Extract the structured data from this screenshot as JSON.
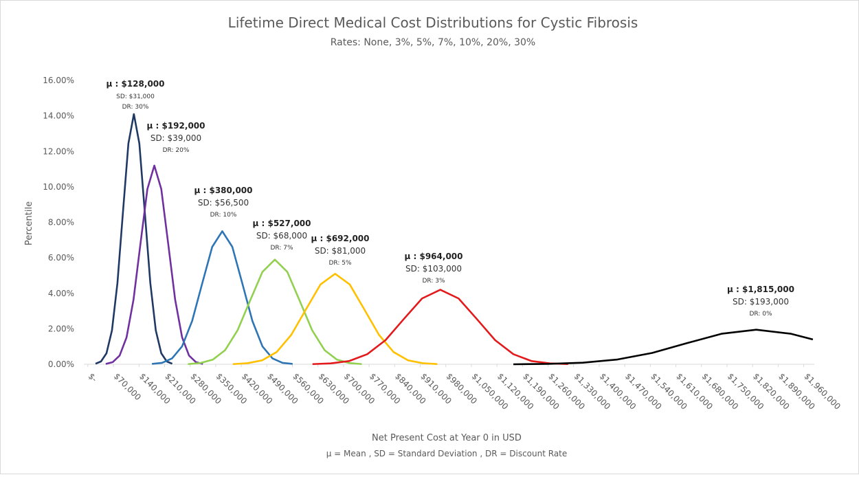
{
  "chart_data": {
    "type": "line",
    "title": "Lifetime Direct Medical Cost Distributions for Cystic Fibrosis",
    "subtitle": "Rates: None, 3%, 5%, 7%, 10%, 20%, 30%",
    "y_label": "Percentile",
    "x_label": "Net Present Cost at Year 0 in USD",
    "note": "μ = Mean , SD = Standard Deviation , DR = Discount Rate",
    "xlim": [
      -11000,
      1989000
    ],
    "ylim": [
      0,
      16
    ],
    "xticks": [
      {
        "value": 0,
        "label": "$-"
      },
      {
        "value": 70000,
        "label": "$70,000"
      },
      {
        "value": 140000,
        "label": "$140,000"
      },
      {
        "value": 210000,
        "label": "$210,000"
      },
      {
        "value": 280000,
        "label": "$280,000"
      },
      {
        "value": 350000,
        "label": "$350,000"
      },
      {
        "value": 420000,
        "label": "$420,000"
      },
      {
        "value": 490000,
        "label": "$490,000"
      },
      {
        "value": 560000,
        "label": "$560,000"
      },
      {
        "value": 630000,
        "label": "$630,000"
      },
      {
        "value": 700000,
        "label": "$700,000"
      },
      {
        "value": 770000,
        "label": "$770,000"
      },
      {
        "value": 840000,
        "label": "$840,000"
      },
      {
        "value": 910000,
        "label": "$910,000"
      },
      {
        "value": 980000,
        "label": "$980,000"
      },
      {
        "value": 1050000,
        "label": "$1,050,000"
      },
      {
        "value": 1120000,
        "label": "$1,120,000"
      },
      {
        "value": 1190000,
        "label": "$1,190,000"
      },
      {
        "value": 1260000,
        "label": "$1,260,000"
      },
      {
        "value": 1330000,
        "label": "$1,330,000"
      },
      {
        "value": 1400000,
        "label": "$1,400,000"
      },
      {
        "value": 1470000,
        "label": "$1,470,000"
      },
      {
        "value": 1540000,
        "label": "$1,540,000"
      },
      {
        "value": 1610000,
        "label": "$1,610,000"
      },
      {
        "value": 1680000,
        "label": "$1,680,000"
      },
      {
        "value": 1750000,
        "label": "$1,750,000"
      },
      {
        "value": 1820000,
        "label": "$1,820,000"
      },
      {
        "value": 1890000,
        "label": "$1,890,000"
      },
      {
        "value": 1960000,
        "label": "$1,960,000"
      }
    ],
    "yticks": [
      {
        "value": 0,
        "label": "0.00%"
      },
      {
        "value": 2,
        "label": "2.00%"
      },
      {
        "value": 4,
        "label": "4.00%"
      },
      {
        "value": 6,
        "label": "6.00%"
      },
      {
        "value": 8,
        "label": "8.00%"
      },
      {
        "value": 10,
        "label": "10.00%"
      },
      {
        "value": 12,
        "label": "12.00%"
      },
      {
        "value": 14,
        "label": "14.00%"
      },
      {
        "value": 16,
        "label": "16.00%"
      }
    ],
    "series": [
      {
        "color": "#1f3864",
        "x": [
          21000,
          36000,
          51000,
          66000,
          81000,
          96000,
          111000,
          126000,
          141000,
          156000,
          171000,
          186000,
          201000,
          216000,
          231000
        ],
        "values": [
          0.03,
          0.16,
          0.62,
          1.91,
          4.58,
          8.55,
          12.44,
          14.1,
          12.44,
          8.55,
          4.58,
          1.91,
          0.62,
          0.16,
          0.03
        ]
      },
      {
        "color": "#7030a0",
        "x": [
          49000,
          68000,
          87000,
          106000,
          125000,
          144000,
          163000,
          182000,
          201000,
          220000,
          239000,
          258000,
          277000,
          296000,
          315000
        ],
        "values": [
          0.02,
          0.12,
          0.49,
          1.52,
          3.64,
          6.79,
          9.88,
          11.2,
          9.88,
          6.79,
          3.64,
          1.52,
          0.49,
          0.12,
          0.02
        ]
      },
      {
        "color": "#2e75b6",
        "x": [
          175500,
          203000,
          230500,
          258000,
          285500,
          313000,
          340500,
          368000,
          395500,
          423000,
          450500,
          478000,
          505500,
          533000,
          560500
        ],
        "values": [
          0.02,
          0.08,
          0.33,
          1.01,
          2.44,
          4.55,
          6.62,
          7.5,
          6.62,
          4.55,
          2.44,
          1.01,
          0.33,
          0.08,
          0.02
        ]
      },
      {
        "color": "#92d050",
        "x": [
          274000,
          308000,
          342000,
          376000,
          410000,
          444000,
          478000,
          512000,
          546000,
          580000,
          614000,
          648000,
          682000,
          716000,
          750000
        ],
        "values": [
          0.01,
          0.07,
          0.26,
          0.8,
          1.92,
          3.58,
          5.21,
          5.9,
          5.21,
          3.58,
          1.92,
          0.8,
          0.26,
          0.07,
          0.01
        ]
      },
      {
        "color": "#ffc000",
        "x": [
          397000,
          437000,
          477000,
          517000,
          557000,
          597000,
          637000,
          677000,
          717000,
          757000,
          797000,
          837000,
          877000,
          917000,
          957000
        ],
        "values": [
          0.01,
          0.06,
          0.22,
          0.69,
          1.66,
          3.09,
          4.5,
          5.1,
          4.5,
          3.09,
          1.66,
          0.69,
          0.22,
          0.06,
          0.01
        ]
      },
      {
        "color": "#e31a1c",
        "x": [
          615000,
          665000,
          715000,
          765000,
          815000,
          865000,
          915000,
          965000,
          1015000,
          1065000,
          1115000,
          1165000,
          1215000,
          1265000,
          1315000
        ],
        "values": [
          0.01,
          0.05,
          0.18,
          0.57,
          1.36,
          2.55,
          3.71,
          4.2,
          3.71,
          2.55,
          1.36,
          0.57,
          0.18,
          0.05,
          0.01
        ]
      },
      {
        "color": "#000000",
        "x": [
          1165000,
          1260000,
          1355000,
          1450000,
          1545000,
          1640000,
          1735000,
          1830000,
          1925000,
          1985000
        ],
        "values": [
          0.0,
          0.02,
          0.09,
          0.27,
          0.64,
          1.19,
          1.72,
          1.95,
          1.72,
          1.4
        ]
      }
    ],
    "annotations": [
      {
        "mean": "μ : $128,000",
        "sd": "SD: $31,000",
        "dr": "DR: 30%"
      },
      {
        "mean": "μ : $192,000",
        "sd": "SD: $39,000",
        "dr": "DR: 20%"
      },
      {
        "mean": "μ : $380,000",
        "sd": "SD: $56,500",
        "dr": "DR: 10%"
      },
      {
        "mean": "μ : $527,000",
        "sd": "SD: $68,000",
        "dr": "DR: 7%"
      },
      {
        "mean": "μ : $692,000",
        "sd": "SD: $81,000",
        "dr": "DR: 5%"
      },
      {
        "mean": "μ : $964,000",
        "sd": "SD: $103,000",
        "dr": "DR: 3%"
      },
      {
        "mean": "μ : $1,815,000",
        "sd": "SD: $193,000",
        "dr": "DR: 0%"
      }
    ]
  }
}
